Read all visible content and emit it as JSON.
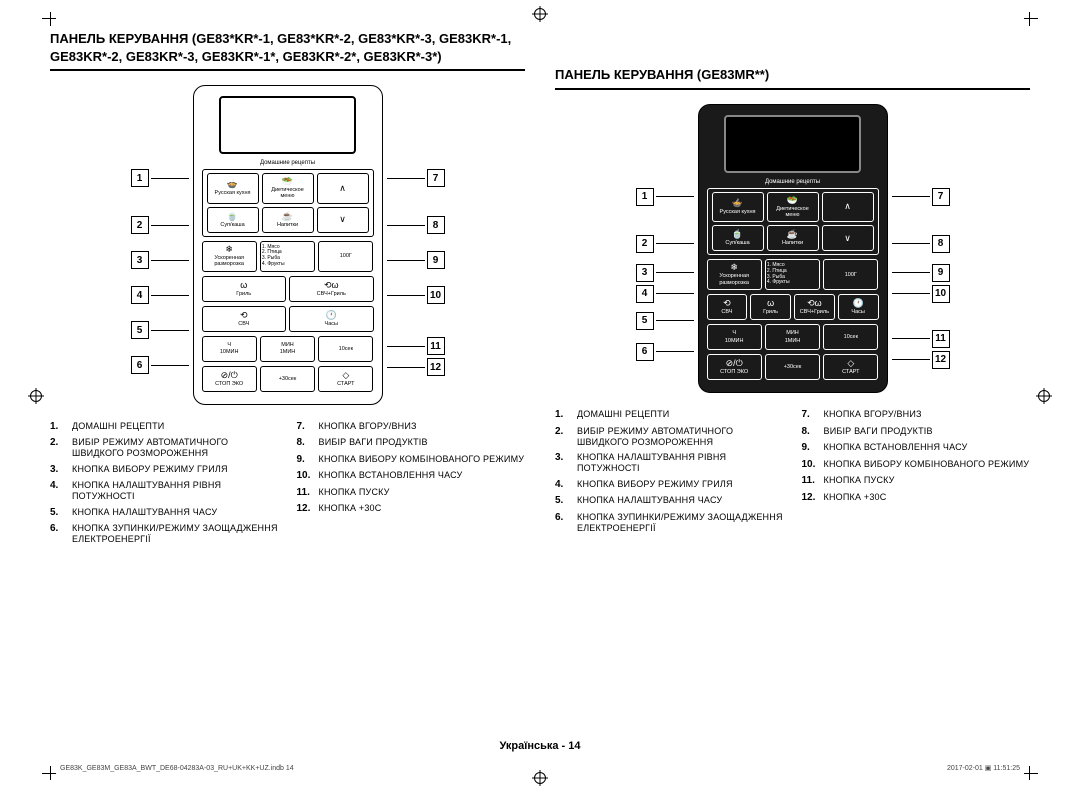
{
  "left": {
    "title": "ПАНЕЛЬ КЕРУВАННЯ (GE83*KR*-1, GE83*KR*-2, GE83*KR*-3, GE83KR*-1, GE83KR*-2, GE83KR*-3, GE83KR*-1*, GE83KR*-2*, GE83KR*-3*)",
    "panel": {
      "recipes_label": "Домашние рецепты",
      "russian": "Русская кухня",
      "diet": "Диетическое меню",
      "soup": "Суп/каша",
      "drinks": "Напитки",
      "defrost": "Ускоренная разморозка",
      "defrost_items": "1. Мясо\n2. Птица\n3. Рыба\n4. Фрукты",
      "g100": "100Г",
      "grill": "Гриль",
      "mwgrill": "СВЧ+Гриль",
      "mw": "СВЧ",
      "clock": "Часы",
      "h": "Ч",
      "m": "МИН",
      "min10": "10МИН",
      "min1": "1МИН",
      "sec10": "10сек",
      "stop": "СТОП ЭКО",
      "plus30": "+30сек",
      "start": "СТАРТ"
    },
    "callouts_left": [
      "1",
      "2",
      "3",
      "4",
      "5",
      "6"
    ],
    "callouts_right": [
      "7",
      "8",
      "9",
      "10",
      "11",
      "12"
    ],
    "legend_left": [
      {
        "n": "1.",
        "t": "ДОМАШНІ РЕЦЕПТИ"
      },
      {
        "n": "2.",
        "t": "ВИБІР РЕЖИМУ АВТОМАТИЧНОГО ШВИДКОГО РОЗМОРОЖЕННЯ"
      },
      {
        "n": "3.",
        "t": "КНОПКА ВИБОРУ РЕЖИМУ ГРИЛЯ"
      },
      {
        "n": "4.",
        "t": "КНОПКА НАЛАШТУВАННЯ РІВНЯ ПОТУЖНОСТІ"
      },
      {
        "n": "5.",
        "t": "КНОПКА НАЛАШТУВАННЯ ЧАСУ"
      },
      {
        "n": "6.",
        "t": "КНОПКА ЗУПИНКИ/РЕЖИМУ ЗАОЩАДЖЕННЯ ЕЛЕКТРОЕНЕРГІЇ"
      }
    ],
    "legend_right": [
      {
        "n": "7.",
        "t": "КНОПКА ВГОРУ/ВНИЗ"
      },
      {
        "n": "8.",
        "t": "ВИБІР ВАГИ ПРОДУКТІВ"
      },
      {
        "n": "9.",
        "t": "КНОПКА ВИБОРУ КОМБІНОВАНОГО РЕЖИМУ"
      },
      {
        "n": "10.",
        "t": "КНОПКА ВСТАНОВЛЕННЯ ЧАСУ"
      },
      {
        "n": "11.",
        "t": "КНОПКА ПУСКУ"
      },
      {
        "n": "12.",
        "t": "КНОПКА +30с"
      }
    ]
  },
  "right": {
    "title": "ПАНЕЛЬ КЕРУВАННЯ (GE83MR**)",
    "panel": {
      "recipes_label": "Домашние рецепты",
      "russian": "Русская кухня",
      "diet": "Диетическое меню",
      "soup": "Суп/каша",
      "drinks": "Напитки",
      "defrost": "Ускоренная разморозка",
      "defrost_items": "1. Мясо\n2. Птица\n3. Рыба\n4. Фрукты",
      "g100": "100Г",
      "mw": "СВЧ",
      "grill": "Гриль",
      "mwgrill": "СВЧ+Гриль",
      "clock": "Часы",
      "h": "Ч",
      "m": "МИН",
      "min10": "10МИН",
      "min1": "1МИН",
      "sec10": "10сек",
      "stop": "СТОП ЭКО",
      "plus30": "+30сек",
      "start": "СТАРТ"
    },
    "callouts_left": [
      "1",
      "2",
      "3",
      "4",
      "5",
      "6"
    ],
    "callouts_right": [
      "7",
      "8",
      "9",
      "10",
      "11",
      "12"
    ],
    "legend_left": [
      {
        "n": "1.",
        "t": "ДОМАШНІ РЕЦЕПТИ"
      },
      {
        "n": "2.",
        "t": "ВИБІР РЕЖИМУ АВТОМАТИЧНОГО ШВИДКОГО РОЗМОРОЖЕННЯ"
      },
      {
        "n": "3.",
        "t": "КНОПКА НАЛАШТУВАННЯ РІВНЯ ПОТУЖНОСТІ"
      },
      {
        "n": "4.",
        "t": "КНОПКА ВИБОРУ РЕЖИМУ ГРИЛЯ"
      },
      {
        "n": "5.",
        "t": "КНОПКА НАЛАШТУВАННЯ ЧАСУ"
      },
      {
        "n": "6.",
        "t": "КНОПКА ЗУПИНКИ/РЕЖИМУ ЗАОЩАДЖЕННЯ ЕЛЕКТРОЕНЕРГІЇ"
      }
    ],
    "legend_right": [
      {
        "n": "7.",
        "t": "КНОПКА ВГОРУ/ВНИЗ"
      },
      {
        "n": "8.",
        "t": "ВИБІР ВАГИ ПРОДУКТІВ"
      },
      {
        "n": "9.",
        "t": "КНОПКА ВСТАНОВЛЕННЯ ЧАСУ"
      },
      {
        "n": "10.",
        "t": "КНОПКА ВИБОРУ КОМБІНОВАНОГО РЕЖИМУ"
      },
      {
        "n": "11.",
        "t": "КНОПКА ПУСКУ"
      },
      {
        "n": "12.",
        "t": "КНОПКА +30с"
      }
    ]
  },
  "footer": "Українська - 14",
  "indd": "GE83K_GE83M_GE83A_BWT_DE68-04283A-03_RU+UK+KK+UZ.indb   14",
  "date": "2017-02-01   ▣ 11:51:25"
}
